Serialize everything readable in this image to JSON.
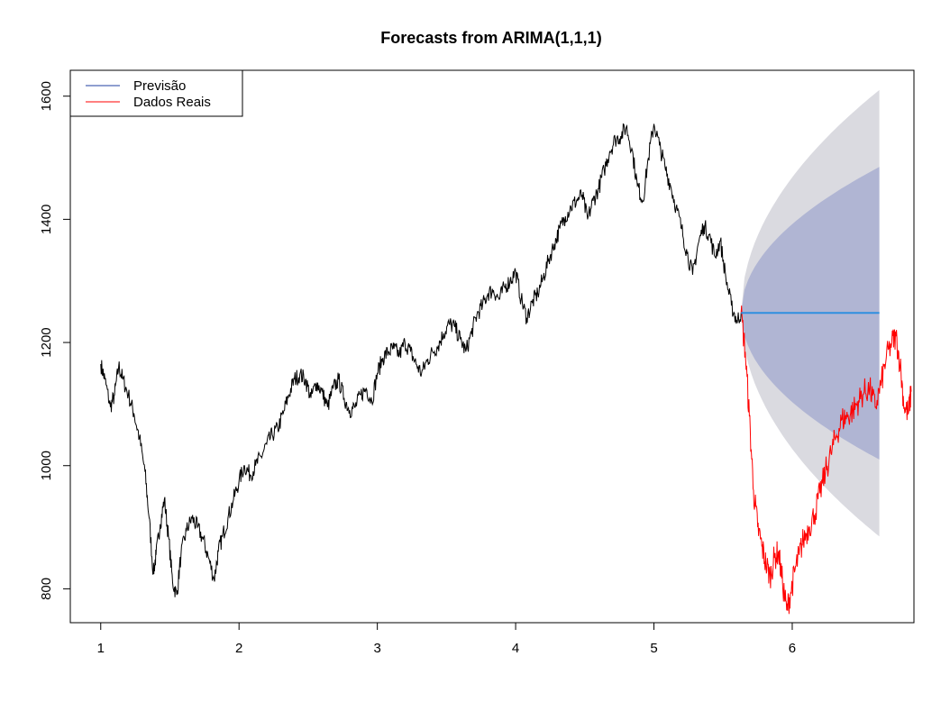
{
  "chart_data": {
    "type": "line",
    "title": "Forecasts from ARIMA(1,1,1)",
    "xlabel": "",
    "ylabel": "",
    "xlim": [
      0.78,
      6.88
    ],
    "ylim": [
      745,
      1642
    ],
    "x_ticks": [
      "1",
      "2",
      "3",
      "4",
      "5",
      "6"
    ],
    "y_ticks": [
      "800",
      "1000",
      "1200",
      "1400",
      "1600"
    ],
    "grid": false,
    "legend": {
      "position": "top-left",
      "entries": [
        {
          "label": "Previsão",
          "color": "#1f3fa0"
        },
        {
          "label": "Dados Reais",
          "color": "#ff0000"
        }
      ]
    },
    "colors": {
      "history": "#000000",
      "actual": "#ff0000",
      "forecast_line": "#2f8fe0",
      "band_80": "#b0b5d3",
      "band_95": "#dadae0"
    },
    "series": [
      {
        "role": "history",
        "points": [
          [
            1.0,
            1165
          ],
          [
            1.03,
            1140
          ],
          [
            1.07,
            1095
          ],
          [
            1.1,
            1115
          ],
          [
            1.13,
            1162
          ],
          [
            1.16,
            1140
          ],
          [
            1.2,
            1115
          ],
          [
            1.24,
            1085
          ],
          [
            1.28,
            1045
          ],
          [
            1.32,
            990
          ],
          [
            1.35,
            915
          ],
          [
            1.38,
            825
          ],
          [
            1.4,
            855
          ],
          [
            1.43,
            905
          ],
          [
            1.46,
            945
          ],
          [
            1.49,
            885
          ],
          [
            1.52,
            810
          ],
          [
            1.55,
            790
          ],
          [
            1.58,
            855
          ],
          [
            1.62,
            895
          ],
          [
            1.66,
            915
          ],
          [
            1.7,
            900
          ],
          [
            1.74,
            880
          ],
          [
            1.78,
            850
          ],
          [
            1.82,
            815
          ],
          [
            1.85,
            860
          ],
          [
            1.88,
            885
          ],
          [
            1.92,
            915
          ],
          [
            1.96,
            945
          ],
          [
            2.0,
            975
          ],
          [
            2.04,
            1000
          ],
          [
            2.08,
            985
          ],
          [
            2.12,
            1000
          ],
          [
            2.16,
            1015
          ],
          [
            2.2,
            1035
          ],
          [
            2.24,
            1050
          ],
          [
            2.28,
            1060
          ],
          [
            2.32,
            1085
          ],
          [
            2.36,
            1115
          ],
          [
            2.4,
            1140
          ],
          [
            2.44,
            1148
          ],
          [
            2.48,
            1140
          ],
          [
            2.52,
            1110
          ],
          [
            2.56,
            1135
          ],
          [
            2.6,
            1120
          ],
          [
            2.64,
            1095
          ],
          [
            2.68,
            1125
          ],
          [
            2.72,
            1140
          ],
          [
            2.76,
            1110
          ],
          [
            2.8,
            1090
          ],
          [
            2.84,
            1095
          ],
          [
            2.88,
            1115
          ],
          [
            2.92,
            1125
          ],
          [
            2.96,
            1105
          ],
          [
            3.0,
            1150
          ],
          [
            3.04,
            1175
          ],
          [
            3.08,
            1185
          ],
          [
            3.12,
            1190
          ],
          [
            3.16,
            1180
          ],
          [
            3.2,
            1200
          ],
          [
            3.24,
            1185
          ],
          [
            3.28,
            1165
          ],
          [
            3.32,
            1150
          ],
          [
            3.36,
            1170
          ],
          [
            3.4,
            1185
          ],
          [
            3.44,
            1195
          ],
          [
            3.48,
            1215
          ],
          [
            3.52,
            1230
          ],
          [
            3.56,
            1225
          ],
          [
            3.6,
            1205
          ],
          [
            3.64,
            1185
          ],
          [
            3.68,
            1215
          ],
          [
            3.72,
            1245
          ],
          [
            3.76,
            1260
          ],
          [
            3.8,
            1280
          ],
          [
            3.84,
            1285
          ],
          [
            3.88,
            1270
          ],
          [
            3.92,
            1290
          ],
          [
            3.96,
            1300
          ],
          [
            4.0,
            1315
          ],
          [
            4.04,
            1270
          ],
          [
            4.08,
            1240
          ],
          [
            4.12,
            1265
          ],
          [
            4.16,
            1280
          ],
          [
            4.2,
            1305
          ],
          [
            4.24,
            1335
          ],
          [
            4.28,
            1360
          ],
          [
            4.32,
            1385
          ],
          [
            4.36,
            1405
          ],
          [
            4.4,
            1420
          ],
          [
            4.44,
            1430
          ],
          [
            4.48,
            1440
          ],
          [
            4.52,
            1400
          ],
          [
            4.56,
            1430
          ],
          [
            4.6,
            1450
          ],
          [
            4.64,
            1480
          ],
          [
            4.68,
            1510
          ],
          [
            4.72,
            1530
          ],
          [
            4.76,
            1535
          ],
          [
            4.8,
            1550
          ],
          [
            4.84,
            1515
          ],
          [
            4.88,
            1455
          ],
          [
            4.92,
            1430
          ],
          [
            4.96,
            1500
          ],
          [
            5.0,
            1555
          ],
          [
            5.04,
            1520
          ],
          [
            5.08,
            1485
          ],
          [
            5.12,
            1455
          ],
          [
            5.16,
            1420
          ],
          [
            5.2,
            1385
          ],
          [
            5.24,
            1345
          ],
          [
            5.28,
            1310
          ],
          [
            5.32,
            1360
          ],
          [
            5.36,
            1390
          ],
          [
            5.4,
            1375
          ],
          [
            5.44,
            1340
          ],
          [
            5.48,
            1365
          ],
          [
            5.52,
            1305
          ],
          [
            5.56,
            1260
          ],
          [
            5.6,
            1235
          ],
          [
            5.63,
            1248
          ]
        ]
      },
      {
        "role": "forecast",
        "x": [
          5.63,
          6.63
        ],
        "value": 1248,
        "lo80": [
          1248,
          1010
        ],
        "hi80": [
          1248,
          1485
        ],
        "lo95": [
          1248,
          885
        ],
        "hi95": [
          1248,
          1610
        ]
      },
      {
        "role": "actual",
        "points": [
          [
            5.63,
            1248
          ],
          [
            5.66,
            1185
          ],
          [
            5.69,
            1080
          ],
          [
            5.72,
            960
          ],
          [
            5.75,
            900
          ],
          [
            5.78,
            870
          ],
          [
            5.81,
            840
          ],
          [
            5.84,
            820
          ],
          [
            5.87,
            850
          ],
          [
            5.9,
            860
          ],
          [
            5.93,
            810
          ],
          [
            5.96,
            765
          ],
          [
            5.99,
            795
          ],
          [
            6.02,
            830
          ],
          [
            6.05,
            855
          ],
          [
            6.08,
            880
          ],
          [
            6.12,
            900
          ],
          [
            6.16,
            920
          ],
          [
            6.2,
            955
          ],
          [
            6.24,
            990
          ],
          [
            6.28,
            1020
          ],
          [
            6.32,
            1050
          ],
          [
            6.36,
            1075
          ],
          [
            6.4,
            1080
          ],
          [
            6.44,
            1090
          ],
          [
            6.48,
            1105
          ],
          [
            6.52,
            1120
          ],
          [
            6.56,
            1125
          ],
          [
            6.6,
            1095
          ],
          [
            6.64,
            1130
          ],
          [
            6.68,
            1175
          ],
          [
            6.72,
            1200
          ],
          [
            6.75,
            1210
          ],
          [
            6.78,
            1165
          ],
          [
            6.81,
            1095
          ],
          [
            6.84,
            1085
          ],
          [
            6.86,
            1120
          ]
        ]
      }
    ]
  }
}
